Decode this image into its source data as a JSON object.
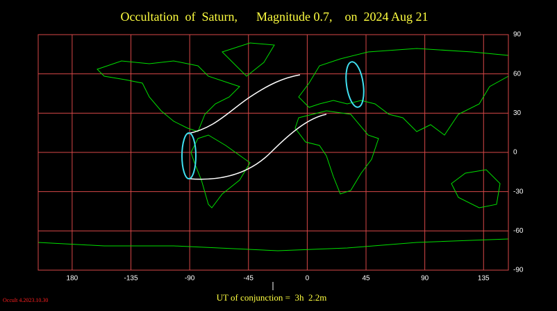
{
  "chart_data": {
    "type": "map",
    "title": "Occultation  of  Saturn,      Magnitude 0.7,    on  2024 Aug 21",
    "xlim": [
      -206,
      154
    ],
    "ylim": [
      -90,
      90
    ],
    "xticks": [
      {
        "value": -180,
        "label": "180"
      },
      -135,
      -90,
      -45,
      0,
      45,
      90,
      135
    ],
    "yticks": [
      90,
      60,
      30,
      0,
      -30,
      -60,
      -90
    ],
    "grid": true,
    "conjunction_label": "UT of conjunction =  3h  2.2m",
    "footer": "Occult 4.2023.10.30"
  }
}
